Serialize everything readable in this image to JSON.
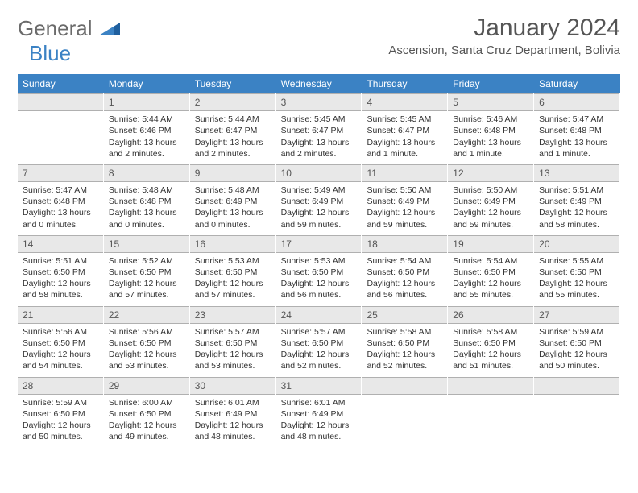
{
  "logo": {
    "general": "General",
    "blue": "Blue"
  },
  "title": "January 2024",
  "location": "Ascension, Santa Cruz Department, Bolivia",
  "dow": [
    "Sunday",
    "Monday",
    "Tuesday",
    "Wednesday",
    "Thursday",
    "Friday",
    "Saturday"
  ],
  "header_bg": "#3b82c4",
  "daynum_bg": "#e8e8e8",
  "border_color": "#b0b0b0",
  "weeks": [
    [
      {
        "n": "",
        "sr": "",
        "ss": "",
        "dl": ""
      },
      {
        "n": "1",
        "sr": "Sunrise: 5:44 AM",
        "ss": "Sunset: 6:46 PM",
        "dl": "Daylight: 13 hours and 2 minutes."
      },
      {
        "n": "2",
        "sr": "Sunrise: 5:44 AM",
        "ss": "Sunset: 6:47 PM",
        "dl": "Daylight: 13 hours and 2 minutes."
      },
      {
        "n": "3",
        "sr": "Sunrise: 5:45 AM",
        "ss": "Sunset: 6:47 PM",
        "dl": "Daylight: 13 hours and 2 minutes."
      },
      {
        "n": "4",
        "sr": "Sunrise: 5:45 AM",
        "ss": "Sunset: 6:47 PM",
        "dl": "Daylight: 13 hours and 1 minute."
      },
      {
        "n": "5",
        "sr": "Sunrise: 5:46 AM",
        "ss": "Sunset: 6:48 PM",
        "dl": "Daylight: 13 hours and 1 minute."
      },
      {
        "n": "6",
        "sr": "Sunrise: 5:47 AM",
        "ss": "Sunset: 6:48 PM",
        "dl": "Daylight: 13 hours and 1 minute."
      }
    ],
    [
      {
        "n": "7",
        "sr": "Sunrise: 5:47 AM",
        "ss": "Sunset: 6:48 PM",
        "dl": "Daylight: 13 hours and 0 minutes."
      },
      {
        "n": "8",
        "sr": "Sunrise: 5:48 AM",
        "ss": "Sunset: 6:48 PM",
        "dl": "Daylight: 13 hours and 0 minutes."
      },
      {
        "n": "9",
        "sr": "Sunrise: 5:48 AM",
        "ss": "Sunset: 6:49 PM",
        "dl": "Daylight: 13 hours and 0 minutes."
      },
      {
        "n": "10",
        "sr": "Sunrise: 5:49 AM",
        "ss": "Sunset: 6:49 PM",
        "dl": "Daylight: 12 hours and 59 minutes."
      },
      {
        "n": "11",
        "sr": "Sunrise: 5:50 AM",
        "ss": "Sunset: 6:49 PM",
        "dl": "Daylight: 12 hours and 59 minutes."
      },
      {
        "n": "12",
        "sr": "Sunrise: 5:50 AM",
        "ss": "Sunset: 6:49 PM",
        "dl": "Daylight: 12 hours and 59 minutes."
      },
      {
        "n": "13",
        "sr": "Sunrise: 5:51 AM",
        "ss": "Sunset: 6:49 PM",
        "dl": "Daylight: 12 hours and 58 minutes."
      }
    ],
    [
      {
        "n": "14",
        "sr": "Sunrise: 5:51 AM",
        "ss": "Sunset: 6:50 PM",
        "dl": "Daylight: 12 hours and 58 minutes."
      },
      {
        "n": "15",
        "sr": "Sunrise: 5:52 AM",
        "ss": "Sunset: 6:50 PM",
        "dl": "Daylight: 12 hours and 57 minutes."
      },
      {
        "n": "16",
        "sr": "Sunrise: 5:53 AM",
        "ss": "Sunset: 6:50 PM",
        "dl": "Daylight: 12 hours and 57 minutes."
      },
      {
        "n": "17",
        "sr": "Sunrise: 5:53 AM",
        "ss": "Sunset: 6:50 PM",
        "dl": "Daylight: 12 hours and 56 minutes."
      },
      {
        "n": "18",
        "sr": "Sunrise: 5:54 AM",
        "ss": "Sunset: 6:50 PM",
        "dl": "Daylight: 12 hours and 56 minutes."
      },
      {
        "n": "19",
        "sr": "Sunrise: 5:54 AM",
        "ss": "Sunset: 6:50 PM",
        "dl": "Daylight: 12 hours and 55 minutes."
      },
      {
        "n": "20",
        "sr": "Sunrise: 5:55 AM",
        "ss": "Sunset: 6:50 PM",
        "dl": "Daylight: 12 hours and 55 minutes."
      }
    ],
    [
      {
        "n": "21",
        "sr": "Sunrise: 5:56 AM",
        "ss": "Sunset: 6:50 PM",
        "dl": "Daylight: 12 hours and 54 minutes."
      },
      {
        "n": "22",
        "sr": "Sunrise: 5:56 AM",
        "ss": "Sunset: 6:50 PM",
        "dl": "Daylight: 12 hours and 53 minutes."
      },
      {
        "n": "23",
        "sr": "Sunrise: 5:57 AM",
        "ss": "Sunset: 6:50 PM",
        "dl": "Daylight: 12 hours and 53 minutes."
      },
      {
        "n": "24",
        "sr": "Sunrise: 5:57 AM",
        "ss": "Sunset: 6:50 PM",
        "dl": "Daylight: 12 hours and 52 minutes."
      },
      {
        "n": "25",
        "sr": "Sunrise: 5:58 AM",
        "ss": "Sunset: 6:50 PM",
        "dl": "Daylight: 12 hours and 52 minutes."
      },
      {
        "n": "26",
        "sr": "Sunrise: 5:58 AM",
        "ss": "Sunset: 6:50 PM",
        "dl": "Daylight: 12 hours and 51 minutes."
      },
      {
        "n": "27",
        "sr": "Sunrise: 5:59 AM",
        "ss": "Sunset: 6:50 PM",
        "dl": "Daylight: 12 hours and 50 minutes."
      }
    ],
    [
      {
        "n": "28",
        "sr": "Sunrise: 5:59 AM",
        "ss": "Sunset: 6:50 PM",
        "dl": "Daylight: 12 hours and 50 minutes."
      },
      {
        "n": "29",
        "sr": "Sunrise: 6:00 AM",
        "ss": "Sunset: 6:50 PM",
        "dl": "Daylight: 12 hours and 49 minutes."
      },
      {
        "n": "30",
        "sr": "Sunrise: 6:01 AM",
        "ss": "Sunset: 6:49 PM",
        "dl": "Daylight: 12 hours and 48 minutes."
      },
      {
        "n": "31",
        "sr": "Sunrise: 6:01 AM",
        "ss": "Sunset: 6:49 PM",
        "dl": "Daylight: 12 hours and 48 minutes."
      },
      {
        "n": "",
        "sr": "",
        "ss": "",
        "dl": ""
      },
      {
        "n": "",
        "sr": "",
        "ss": "",
        "dl": ""
      },
      {
        "n": "",
        "sr": "",
        "ss": "",
        "dl": ""
      }
    ]
  ]
}
